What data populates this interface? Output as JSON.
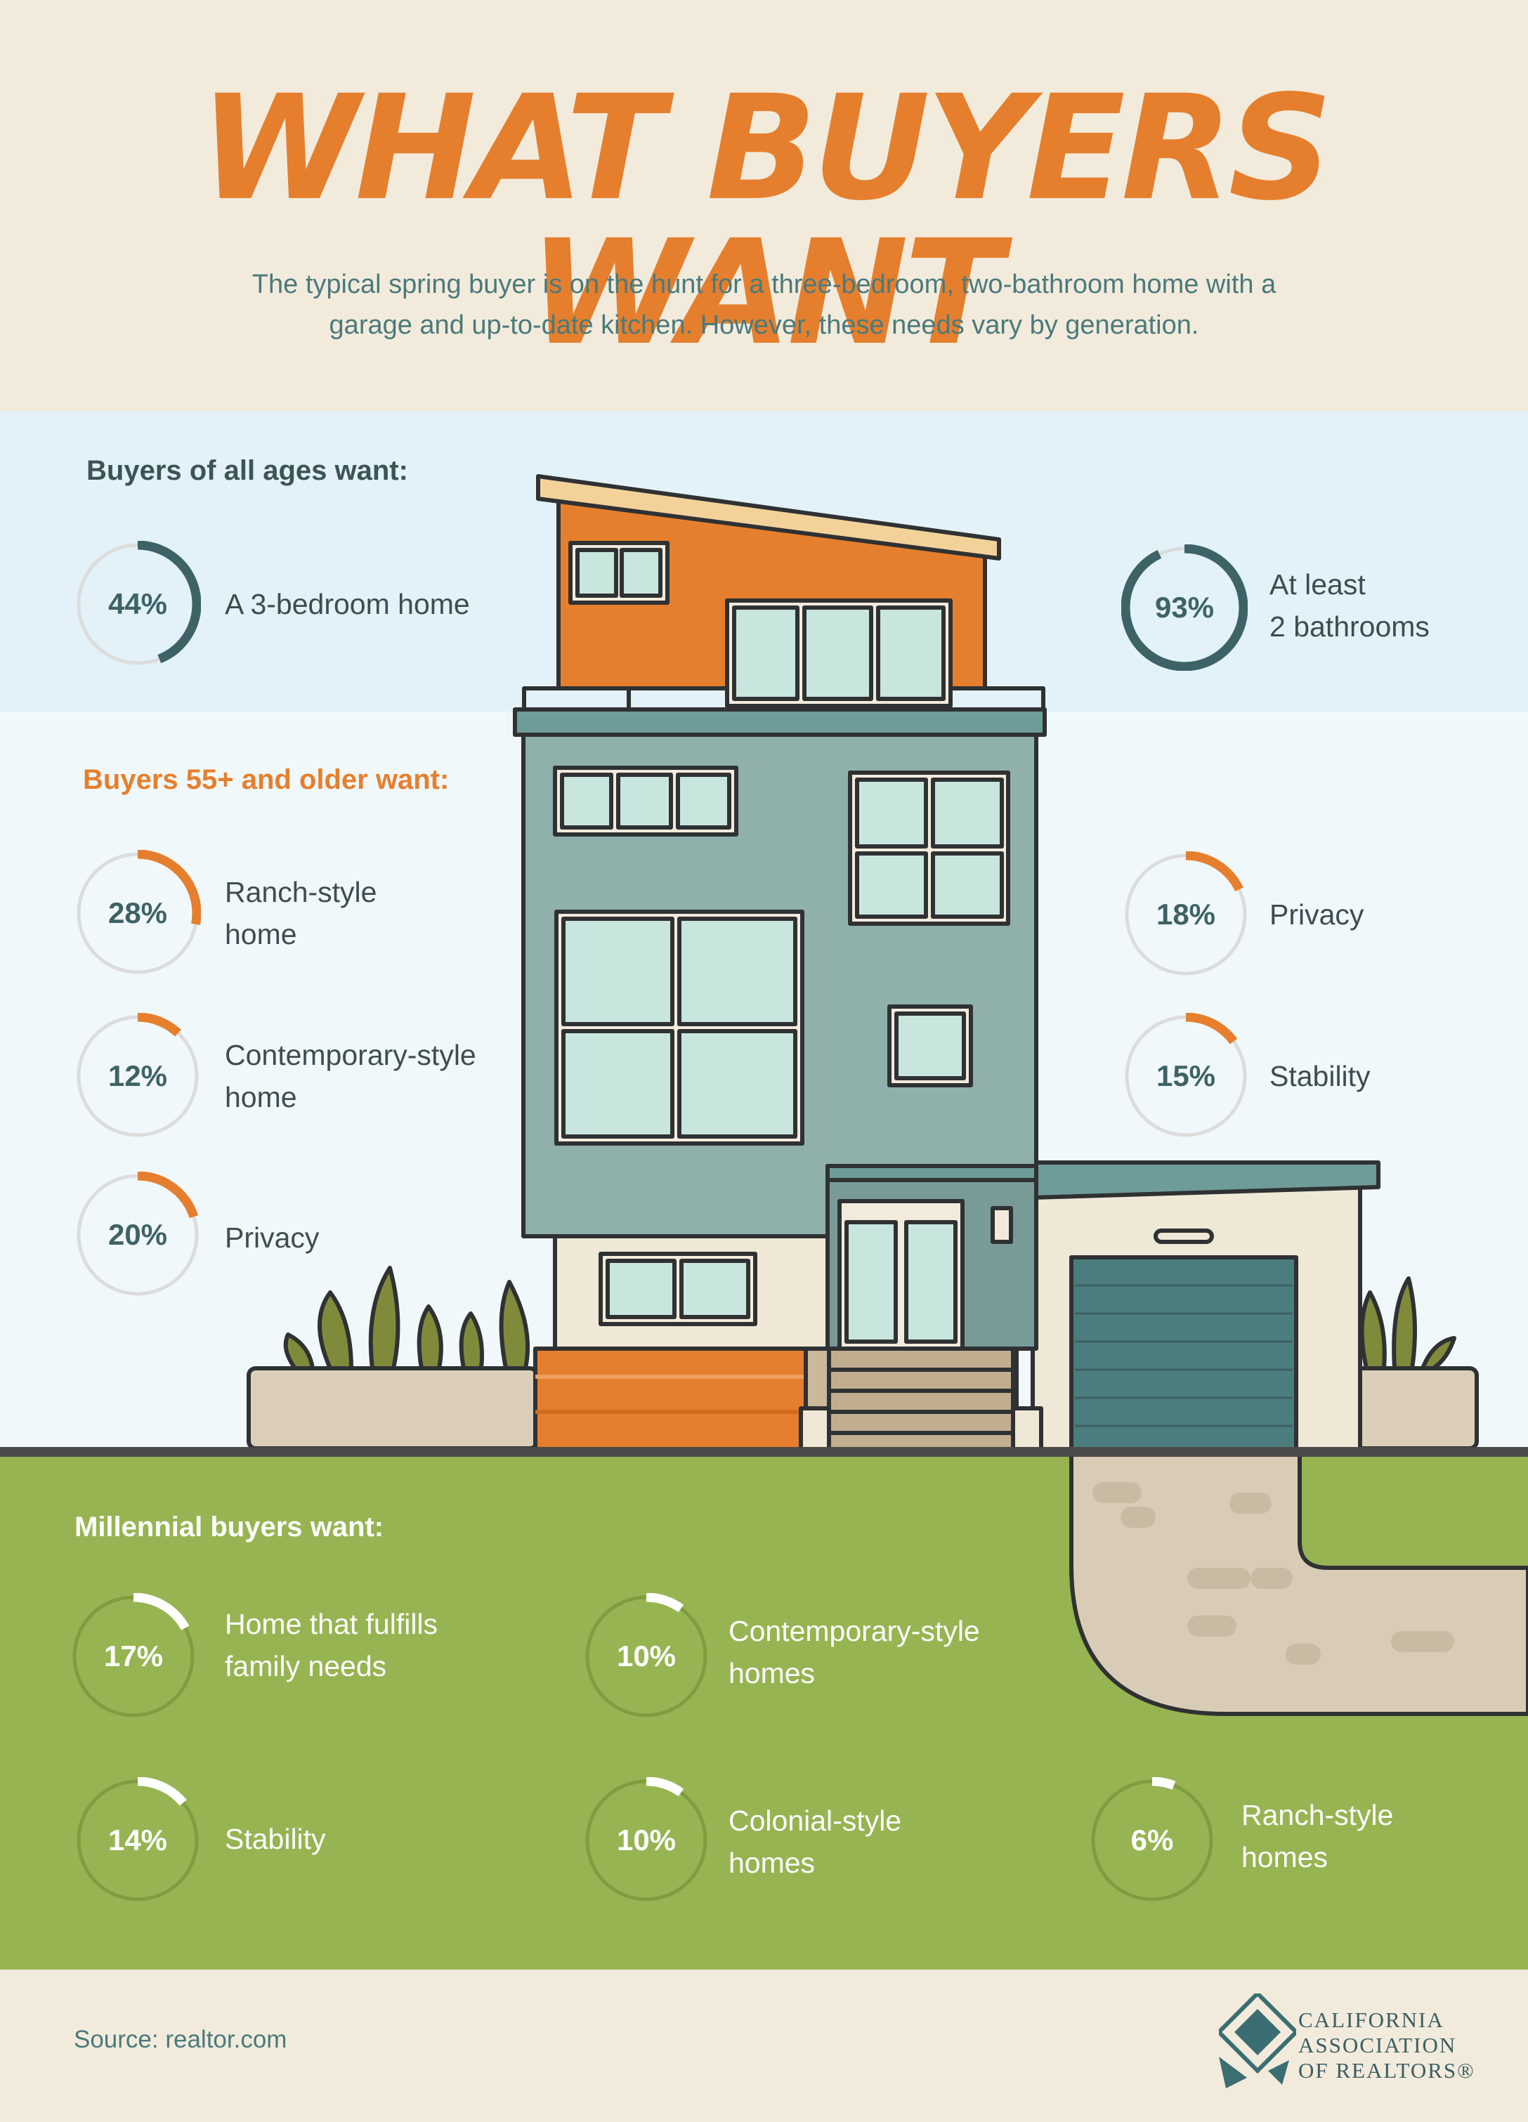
{
  "header": {
    "title": "WHAT BUYERS WANT",
    "subtitle_line1": "The typical spring buyer is on the hunt for a three-bedroom, two-bathroom home with a",
    "subtitle_line2": "garage and up-to-date kitchen. However, these needs vary by generation."
  },
  "colors": {
    "orange": "#e57f2d",
    "teal": "#3e6366",
    "lawn_green": "#96b451",
    "beige": "#f2ebdc"
  },
  "sections": {
    "all_ages": {
      "heading": "Buyers of all ages want:",
      "items": [
        {
          "pct_label": "44%",
          "value": 44,
          "line1": "A 3-bedroom home",
          "line2": ""
        },
        {
          "pct_label": "93%",
          "value": 93,
          "line1": "At least",
          "line2": "2 bathrooms"
        }
      ]
    },
    "older": {
      "heading": "Buyers 55+ and older want:",
      "items": [
        {
          "pct_label": "28%",
          "value": 28,
          "line1": "Ranch-style",
          "line2": "home"
        },
        {
          "pct_label": "12%",
          "value": 12,
          "line1": "Contemporary-style",
          "line2": "home"
        },
        {
          "pct_label": "20%",
          "value": 20,
          "line1": "Privacy",
          "line2": ""
        },
        {
          "pct_label": "18%",
          "value": 18,
          "line1": "Privacy",
          "line2": ""
        },
        {
          "pct_label": "15%",
          "value": 15,
          "line1": "Stability",
          "line2": ""
        }
      ]
    },
    "millennial": {
      "heading": "Millennial buyers want:",
      "items": [
        {
          "pct_label": "17%",
          "value": 17,
          "line1": "Home that fulfills",
          "line2": "family needs"
        },
        {
          "pct_label": "10%",
          "value": 10,
          "line1": "Contemporary-style",
          "line2": "homes"
        },
        {
          "pct_label": "14%",
          "value": 14,
          "line1": "Stability",
          "line2": ""
        },
        {
          "pct_label": "10%",
          "value": 10,
          "line1": "Colonial-style",
          "line2": "homes"
        },
        {
          "pct_label": "6%",
          "value": 6,
          "line1": "Ranch-style",
          "line2": "homes"
        }
      ]
    }
  },
  "footer": {
    "source": "Source: realtor.com",
    "logo_line1": "CALIFORNIA",
    "logo_line2": "ASSOCIATION",
    "logo_line3": "OF REALTORS®"
  }
}
